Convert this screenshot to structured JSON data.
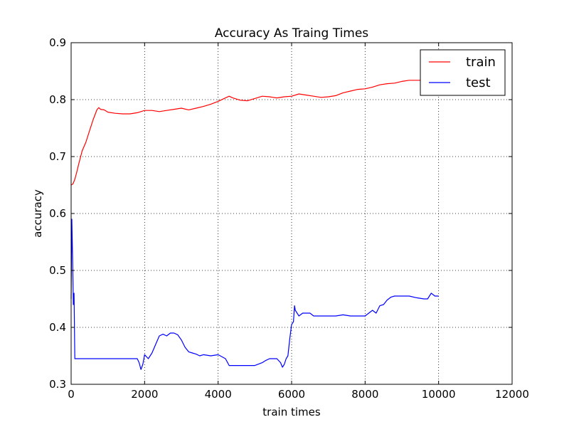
{
  "chart_data": {
    "type": "line",
    "title": "Accuracy As Traing Times",
    "xlabel": "train times",
    "ylabel": "accuracy",
    "xlim": [
      0,
      12000
    ],
    "ylim": [
      0.3,
      0.9
    ],
    "xticks": [
      0,
      2000,
      4000,
      6000,
      8000,
      10000,
      12000
    ],
    "xtick_labels": [
      "0",
      "2000",
      "4000",
      "6000",
      "8000",
      "10000",
      "12000"
    ],
    "yticks": [
      0.3,
      0.4,
      0.5,
      0.6,
      0.7,
      0.8,
      0.9
    ],
    "ytick_labels": [
      "0.3",
      "0.4",
      "0.5",
      "0.6",
      "0.7",
      "0.8",
      "0.9"
    ],
    "grid": true,
    "legend_position": "top-right",
    "series": [
      {
        "name": "train",
        "color": "#ff0000",
        "x": [
          0,
          50,
          100,
          150,
          200,
          300,
          400,
          500,
          600,
          700,
          750,
          800,
          900,
          1000,
          1200,
          1400,
          1600,
          1800,
          1900,
          2000,
          2200,
          2400,
          2600,
          2800,
          3000,
          3200,
          3400,
          3600,
          3800,
          4000,
          4200,
          4300,
          4400,
          4600,
          4800,
          5000,
          5200,
          5400,
          5600,
          5800,
          6000,
          6200,
          6400,
          6600,
          6800,
          7000,
          7200,
          7400,
          7600,
          7800,
          8000,
          8200,
          8400,
          8600,
          8800,
          9000,
          9200,
          9400,
          9600,
          9800,
          10000
        ],
        "values": [
          0.65,
          0.652,
          0.66,
          0.672,
          0.685,
          0.71,
          0.725,
          0.745,
          0.765,
          0.782,
          0.786,
          0.783,
          0.782,
          0.778,
          0.776,
          0.775,
          0.775,
          0.777,
          0.779,
          0.781,
          0.781,
          0.779,
          0.781,
          0.783,
          0.785,
          0.782,
          0.785,
          0.788,
          0.792,
          0.797,
          0.803,
          0.806,
          0.803,
          0.799,
          0.798,
          0.802,
          0.806,
          0.805,
          0.803,
          0.805,
          0.806,
          0.81,
          0.808,
          0.806,
          0.804,
          0.805,
          0.807,
          0.812,
          0.815,
          0.818,
          0.819,
          0.822,
          0.826,
          0.828,
          0.829,
          0.832,
          0.834,
          0.834,
          0.834,
          0.834,
          0.835
        ]
      },
      {
        "name": "test",
        "color": "#0000ff",
        "x": [
          0,
          20,
          40,
          60,
          80,
          100,
          120,
          150,
          300,
          600,
          900,
          1200,
          1500,
          1700,
          1800,
          1850,
          1900,
          1950,
          2000,
          2100,
          2200,
          2300,
          2400,
          2500,
          2600,
          2700,
          2800,
          2900,
          3000,
          3100,
          3200,
          3300,
          3400,
          3500,
          3600,
          3800,
          4000,
          4200,
          4300,
          4400,
          4600,
          4800,
          5000,
          5200,
          5300,
          5400,
          5500,
          5600,
          5700,
          5750,
          5800,
          5850,
          5900,
          5950,
          6000,
          6050,
          6080,
          6100,
          6200,
          6300,
          6400,
          6500,
          6600,
          6800,
          7000,
          7200,
          7400,
          7600,
          7800,
          8000,
          8100,
          8200,
          8300,
          8400,
          8500,
          8600,
          8700,
          8800,
          9000,
          9200,
          9400,
          9600,
          9700,
          9800,
          9900,
          10000
        ],
        "values": [
          0.45,
          0.59,
          0.52,
          0.44,
          0.46,
          0.345,
          0.345,
          0.345,
          0.345,
          0.345,
          0.345,
          0.345,
          0.345,
          0.345,
          0.345,
          0.338,
          0.326,
          0.335,
          0.352,
          0.345,
          0.355,
          0.37,
          0.385,
          0.388,
          0.385,
          0.39,
          0.39,
          0.387,
          0.378,
          0.365,
          0.357,
          0.355,
          0.353,
          0.35,
          0.352,
          0.35,
          0.352,
          0.345,
          0.333,
          0.333,
          0.333,
          0.333,
          0.333,
          0.338,
          0.342,
          0.345,
          0.345,
          0.345,
          0.338,
          0.33,
          0.335,
          0.345,
          0.35,
          0.38,
          0.405,
          0.41,
          0.438,
          0.43,
          0.42,
          0.425,
          0.425,
          0.425,
          0.42,
          0.42,
          0.42,
          0.42,
          0.422,
          0.42,
          0.42,
          0.42,
          0.425,
          0.43,
          0.425,
          0.438,
          0.44,
          0.448,
          0.453,
          0.455,
          0.455,
          0.455,
          0.452,
          0.45,
          0.45,
          0.46,
          0.455,
          0.455
        ]
      }
    ]
  }
}
